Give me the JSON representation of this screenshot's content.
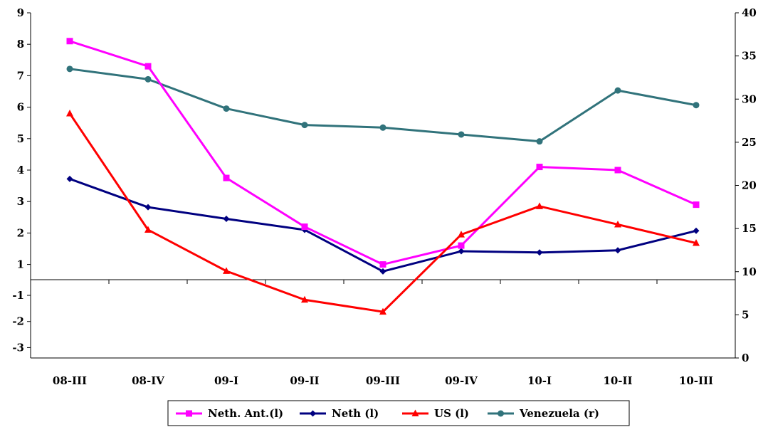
{
  "chart_data": {
    "type": "line",
    "categories": [
      "08-III",
      "08-IV",
      "09-I",
      "09-II",
      "09-III",
      "09-IV",
      "10-I",
      "10-II",
      "10-III"
    ],
    "left_axis": {
      "ticks": [
        9,
        8,
        7,
        6,
        5,
        4,
        3,
        2,
        1,
        -1,
        -2,
        -3
      ]
    },
    "right_axis": {
      "ylim": [
        0,
        40
      ],
      "ticks": [
        0,
        5,
        10,
        15,
        20,
        25,
        30,
        35,
        40
      ]
    },
    "series": [
      {
        "name": "Neth. Ant.(l)",
        "axis": "left",
        "color": "#ff00ff",
        "marker": "square",
        "values": [
          8.1,
          7.3,
          3.75,
          2.2,
          1.0,
          1.6,
          4.1,
          4.0,
          2.9
        ]
      },
      {
        "name": "Neth (l)",
        "axis": "left",
        "color": "#000080",
        "marker": "diamond",
        "values": [
          3.72,
          2.82,
          2.45,
          2.1,
          0.78,
          1.42,
          1.38,
          1.45,
          2.07
        ]
      },
      {
        "name": "US (l)",
        "axis": "left",
        "color": "#ff0000",
        "marker": "triangle",
        "values": [
          5.8,
          2.1,
          -0.07,
          -1.17,
          -1.63,
          1.95,
          2.85,
          2.27,
          1.68
        ]
      },
      {
        "name": "Venezuela (r)",
        "axis": "right",
        "color": "#31737b",
        "marker": "circle",
        "values": [
          33.5,
          32.3,
          28.9,
          27.0,
          26.7,
          25.9,
          25.1,
          31.0,
          29.3
        ]
      }
    ],
    "legend_position": "bottom",
    "grid": false
  }
}
